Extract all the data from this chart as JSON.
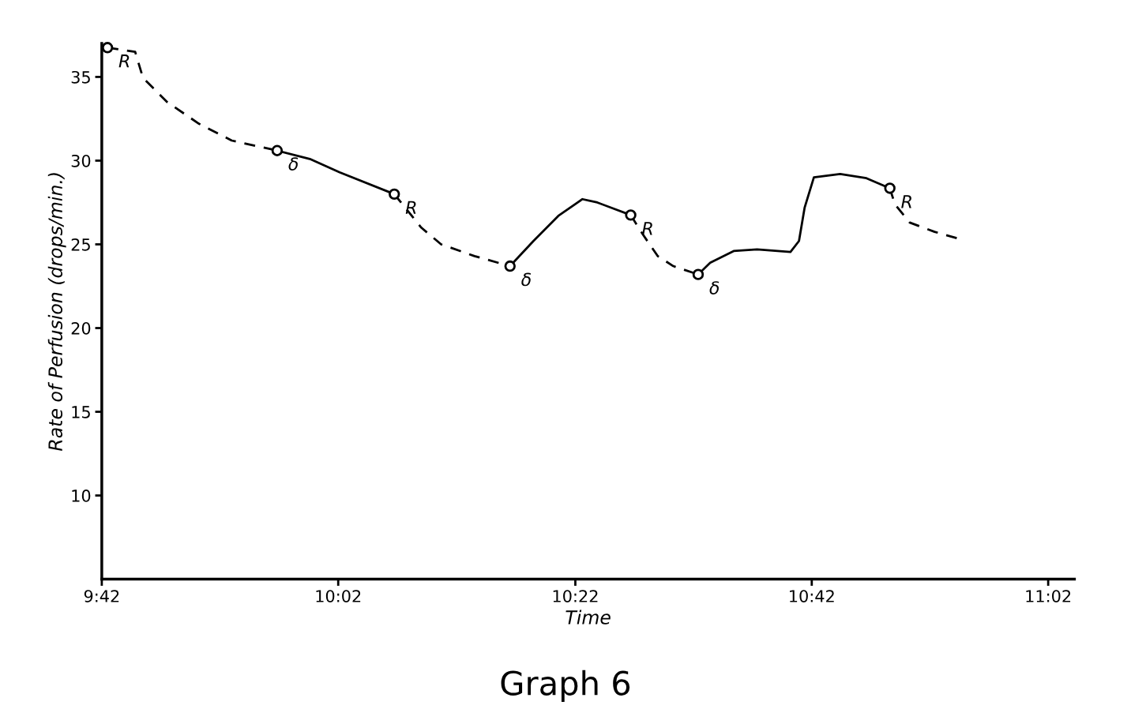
{
  "chart_data": {
    "type": "line",
    "title": "Graph 6",
    "xlabel": "Time",
    "ylabel": "Rate of Perfusion (drops/min.)",
    "xlim": [
      9.7,
      11.07
    ],
    "ylim": [
      5,
      37
    ],
    "xticks": [
      {
        "value": 9.7,
        "label": "9:42"
      },
      {
        "value": 10.033,
        "label": "10:02"
      },
      {
        "value": 10.367,
        "label": "10:22"
      },
      {
        "value": 10.7,
        "label": "10:42"
      },
      {
        "value": 11.033,
        "label": "11:02"
      }
    ],
    "yticks": [
      10,
      15,
      20,
      25,
      30,
      35
    ],
    "grid": false,
    "series": [
      {
        "line_style": "dashed",
        "color": "#000000",
        "x": [
          9.708,
          9.747,
          9.758,
          9.792,
          9.837,
          9.883,
          9.947
        ],
        "values": [
          36.75,
          36.5,
          34.95,
          33.5,
          32.2,
          31.2,
          30.6
        ]
      },
      {
        "line_style": "solid",
        "color": "#000000",
        "x": [
          9.947,
          9.993,
          10.035,
          10.112
        ],
        "values": [
          30.6,
          30.1,
          29.3,
          28.0
        ]
      },
      {
        "line_style": "dashed",
        "color": "#000000",
        "x": [
          10.112,
          10.15,
          10.178,
          10.225,
          10.275
        ],
        "values": [
          28.0,
          26.0,
          25.0,
          24.3,
          23.7
        ]
      },
      {
        "line_style": "solid",
        "color": "#000000",
        "x": [
          10.275,
          10.308,
          10.343,
          10.377,
          10.398,
          10.445
        ],
        "values": [
          23.7,
          25.2,
          26.7,
          27.7,
          27.5,
          26.75
        ]
      },
      {
        "line_style": "dashed",
        "color": "#000000",
        "x": [
          10.445,
          10.462,
          10.483,
          10.505,
          10.54
        ],
        "values": [
          26.75,
          25.6,
          24.3,
          23.7,
          23.2
        ]
      },
      {
        "line_style": "solid",
        "color": "#000000",
        "x": [
          10.54,
          10.557,
          10.59,
          10.623,
          10.67,
          10.682,
          10.69,
          10.703,
          10.74,
          10.777,
          10.81
        ],
        "values": [
          23.2,
          23.9,
          24.6,
          24.7,
          24.55,
          25.2,
          27.2,
          29.0,
          29.2,
          28.95,
          28.35
        ]
      },
      {
        "line_style": "dashed",
        "color": "#000000",
        "x": [
          10.81,
          10.817,
          10.838,
          10.873,
          10.91
        ],
        "values": [
          28.35,
          27.4,
          26.3,
          25.75,
          25.3
        ]
      },
      {
        "type": "scatter",
        "marker": "circle",
        "color": "#000000",
        "x": [
          9.708,
          9.947,
          10.112,
          10.275,
          10.445,
          10.54,
          10.81
        ],
        "values": [
          36.75,
          30.6,
          28.0,
          23.7,
          26.75,
          23.2,
          28.35
        ]
      }
    ],
    "annotations": [
      {
        "text": "R",
        "x": 9.708,
        "y": 36.75
      },
      {
        "text": "δ",
        "x": 9.947,
        "y": 30.6
      },
      {
        "text": "R",
        "x": 10.112,
        "y": 28.0
      },
      {
        "text": "δ",
        "x": 10.275,
        "y": 23.7
      },
      {
        "text": "R",
        "x": 10.445,
        "y": 26.75
      },
      {
        "text": "δ",
        "x": 10.54,
        "y": 23.2
      },
      {
        "text": "R",
        "x": 10.81,
        "y": 28.35
      }
    ]
  }
}
